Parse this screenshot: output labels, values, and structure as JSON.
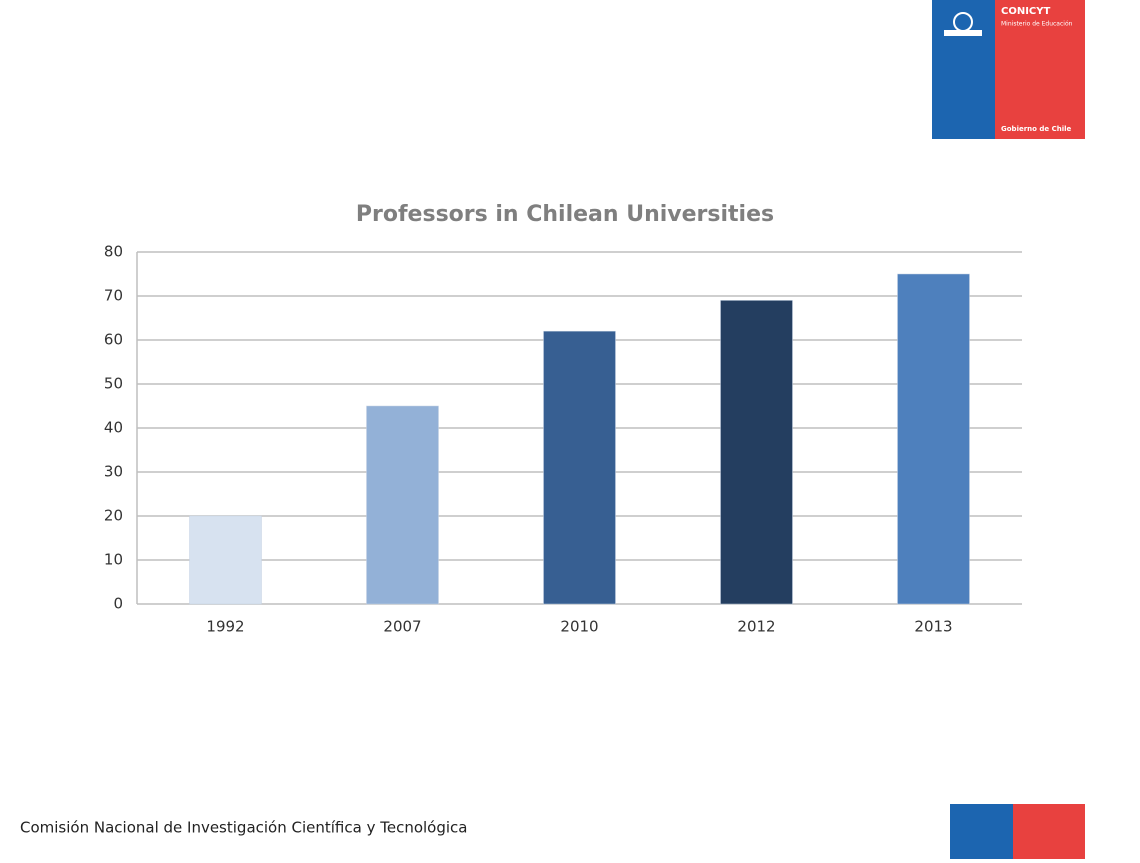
{
  "chart_data": {
    "type": "bar",
    "title": "Professors in Chilean Universities",
    "categories": [
      "1992",
      "2007",
      "2010",
      "2012",
      "2013"
    ],
    "values": [
      20,
      45,
      62,
      69,
      75
    ],
    "colors": [
      "#d7e2f0",
      "#93b1d7",
      "#375f92",
      "#243e60",
      "#4e80bd"
    ],
    "ylim": [
      0,
      80
    ],
    "yticks": [
      0,
      10,
      20,
      30,
      40,
      50,
      60,
      70,
      80
    ],
    "grid": true
  },
  "logo": {
    "name": "CONICYT",
    "ministry": "Ministerio de Educación",
    "government": "Gobierno de Chile"
  },
  "footer": "Comisión Nacional de Investigación Científica y Tecnológica"
}
